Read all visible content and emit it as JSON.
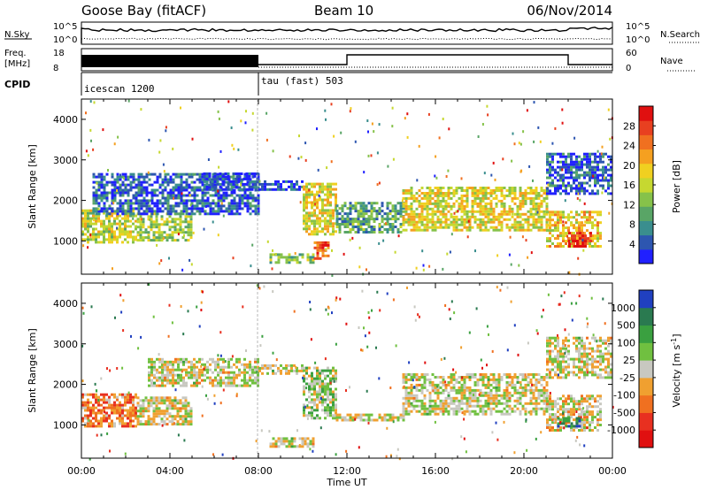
{
  "header": {
    "station": "Goose Bay (fitACF)",
    "beam": "Beam 10",
    "date": "06/Nov/2014"
  },
  "strip_labels": {
    "nsky": "N.Sky",
    "nsearch": "N.Search",
    "freq_line1": "Freq.",
    "freq_line2": "[MHz]",
    "nave": "Nave",
    "cpid": "CPID",
    "nsky_ticks": [
      "10^5",
      "10^0"
    ],
    "nsearch_ticks": [
      "10^5",
      "10^0"
    ],
    "freq_ticks": [
      "18",
      "8"
    ],
    "nave_ticks": [
      "60",
      "0"
    ]
  },
  "cpid_segments": [
    {
      "label": "icescan 1200",
      "start_hour": 0,
      "end_hour": 8
    },
    {
      "label": "tau (fast) 503",
      "start_hour": 8,
      "end_hour": 24
    }
  ],
  "chart_data": [
    {
      "type": "heatmap",
      "name": "power",
      "ylabel": "Slant Range [km]",
      "ylim": [
        180,
        4500
      ],
      "yticks": [
        1000,
        2000,
        3000,
        4000
      ],
      "xlim": [
        0,
        24
      ],
      "colorbar": {
        "label": "Power [dB]",
        "ticks": [
          "4",
          "8",
          "12",
          "16",
          "20",
          "24",
          "28"
        ],
        "colors": [
          "#2020ff",
          "#2d56b0",
          "#3a8e8e",
          "#59a566",
          "#86c24a",
          "#c6d830",
          "#f0d020",
          "#f5a020",
          "#f07020",
          "#e84020",
          "#e01010"
        ]
      },
      "echo_bands": [
        {
          "start": 0.0,
          "end": 2.5,
          "range_low": 1000,
          "range_high": 1800,
          "level": 0.5
        },
        {
          "start": 2.5,
          "end": 5.0,
          "range_low": 1050,
          "range_high": 1750,
          "level": 0.45
        },
        {
          "start": 0.5,
          "end": 8.0,
          "range_low": 1700,
          "range_high": 2700,
          "level": 0.15
        },
        {
          "start": 5.5,
          "end": 8.0,
          "range_low": 2300,
          "range_high": 2700,
          "level": 0.1
        },
        {
          "start": 8.0,
          "end": 10.0,
          "range_low": 2300,
          "range_high": 2550,
          "level": 0.1
        },
        {
          "start": 8.5,
          "end": 10.5,
          "range_low": 500,
          "range_high": 700,
          "level": 0.4
        },
        {
          "start": 10.0,
          "end": 11.5,
          "range_low": 1200,
          "range_high": 2500,
          "level": 0.55
        },
        {
          "start": 10.5,
          "end": 11.2,
          "range_low": 600,
          "range_high": 1000,
          "level": 0.8
        },
        {
          "start": 11.5,
          "end": 14.5,
          "range_low": 1250,
          "range_high": 2000,
          "level": 0.3
        },
        {
          "start": 14.5,
          "end": 21.0,
          "range_low": 1300,
          "range_high": 2400,
          "level": 0.55
        },
        {
          "start": 21.0,
          "end": 23.5,
          "range_low": 900,
          "range_high": 1800,
          "level": 0.6
        },
        {
          "start": 22.0,
          "end": 23.0,
          "range_low": 900,
          "range_high": 1250,
          "level": 0.95
        },
        {
          "start": 21.0,
          "end": 24.0,
          "range_low": 2200,
          "range_high": 3200,
          "level": 0.15
        }
      ]
    },
    {
      "type": "heatmap",
      "name": "velocity",
      "ylabel": "Slant Range [km]",
      "ylim": [
        180,
        4500
      ],
      "yticks": [
        1000,
        2000,
        3000,
        4000
      ],
      "xlabel": "Time UT",
      "xlim": [
        0,
        24
      ],
      "xticks": [
        "00:00",
        "04:00",
        "08:00",
        "12:00",
        "16:00",
        "20:00",
        "00:00"
      ],
      "colorbar": {
        "label": "Velocity [m s^-1]",
        "ticks": [
          "1000",
          "500",
          "100",
          "25",
          "-25",
          "-100",
          "-500",
          "-1000"
        ],
        "colors": [
          "#2040c0",
          "#2a7a50",
          "#3aa040",
          "#70c040",
          "#c8c8c0",
          "#f0a030",
          "#f07020",
          "#e83020",
          "#e01010"
        ]
      },
      "echo_bands": [
        {
          "start": 0.0,
          "end": 2.5,
          "range_low": 1000,
          "range_high": 1800,
          "level": 0.3
        },
        {
          "start": 2.5,
          "end": 5.0,
          "range_low": 1050,
          "range_high": 1750,
          "level": 0.5
        },
        {
          "start": 3.0,
          "end": 8.0,
          "range_low": 2000,
          "range_high": 2700,
          "level": 0.5
        },
        {
          "start": 8.0,
          "end": 10.0,
          "range_low": 2300,
          "range_high": 2550,
          "level": 0.5
        },
        {
          "start": 8.5,
          "end": 10.5,
          "range_low": 500,
          "range_high": 700,
          "level": 0.5
        },
        {
          "start": 10.0,
          "end": 11.5,
          "range_low": 1200,
          "range_high": 2500,
          "level": 0.55
        },
        {
          "start": 11.5,
          "end": 14.5,
          "range_low": 1150,
          "range_high": 1300,
          "level": 0.5
        },
        {
          "start": 14.5,
          "end": 21.0,
          "range_low": 1300,
          "range_high": 2300,
          "level": 0.5
        },
        {
          "start": 21.0,
          "end": 23.5,
          "range_low": 900,
          "range_high": 1800,
          "level": 0.45
        },
        {
          "start": 21.5,
          "end": 22.5,
          "range_low": 1000,
          "range_high": 1250,
          "level": 0.85
        },
        {
          "start": 21.0,
          "end": 24.0,
          "range_low": 2200,
          "range_high": 3200,
          "level": 0.5
        }
      ]
    }
  ]
}
